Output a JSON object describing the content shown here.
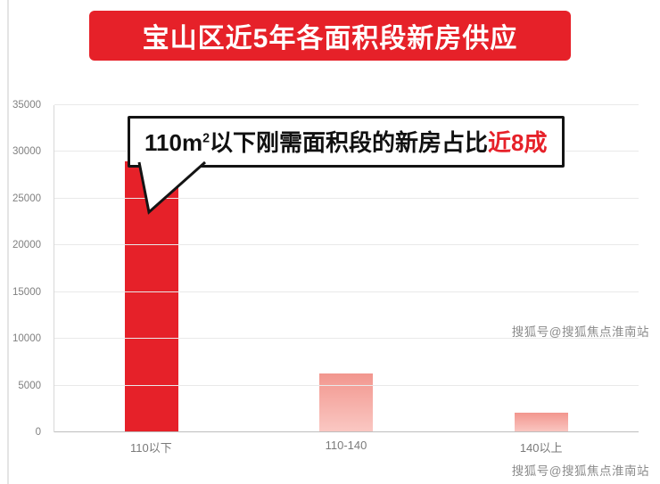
{
  "title": "宝山区近5年各面积段新房供应",
  "callout": {
    "prefix": "110m",
    "superscript": "2",
    "body": "以下刚需面积段的新房占比",
    "highlight": "近8成"
  },
  "watermark": "搜狐号@搜狐焦点淮南站",
  "colors": {
    "banner_red": "#e62129",
    "highlight_red": "#e62129",
    "tail_border": "#141414"
  },
  "chart_data": {
    "type": "bar",
    "title": "宝山区近5年各面积段新房供应",
    "categories": [
      "110以下",
      "110-140",
      "140以上"
    ],
    "values": [
      29000,
      6300,
      2100
    ],
    "xlabel": "",
    "ylabel": "",
    "ylim": [
      0,
      35000
    ],
    "ytick_step": 5000,
    "grid": true,
    "legend": false,
    "bar_styles": [
      {
        "type": "solid",
        "color": "#e62129"
      },
      {
        "type": "gradient",
        "from": "#f2968e",
        "to": "#fac8c3"
      },
      {
        "type": "gradient",
        "from": "#f2968e",
        "to": "#fac8c3"
      }
    ],
    "annotation": "110m²以下刚需面积段的新房占比近8成"
  }
}
